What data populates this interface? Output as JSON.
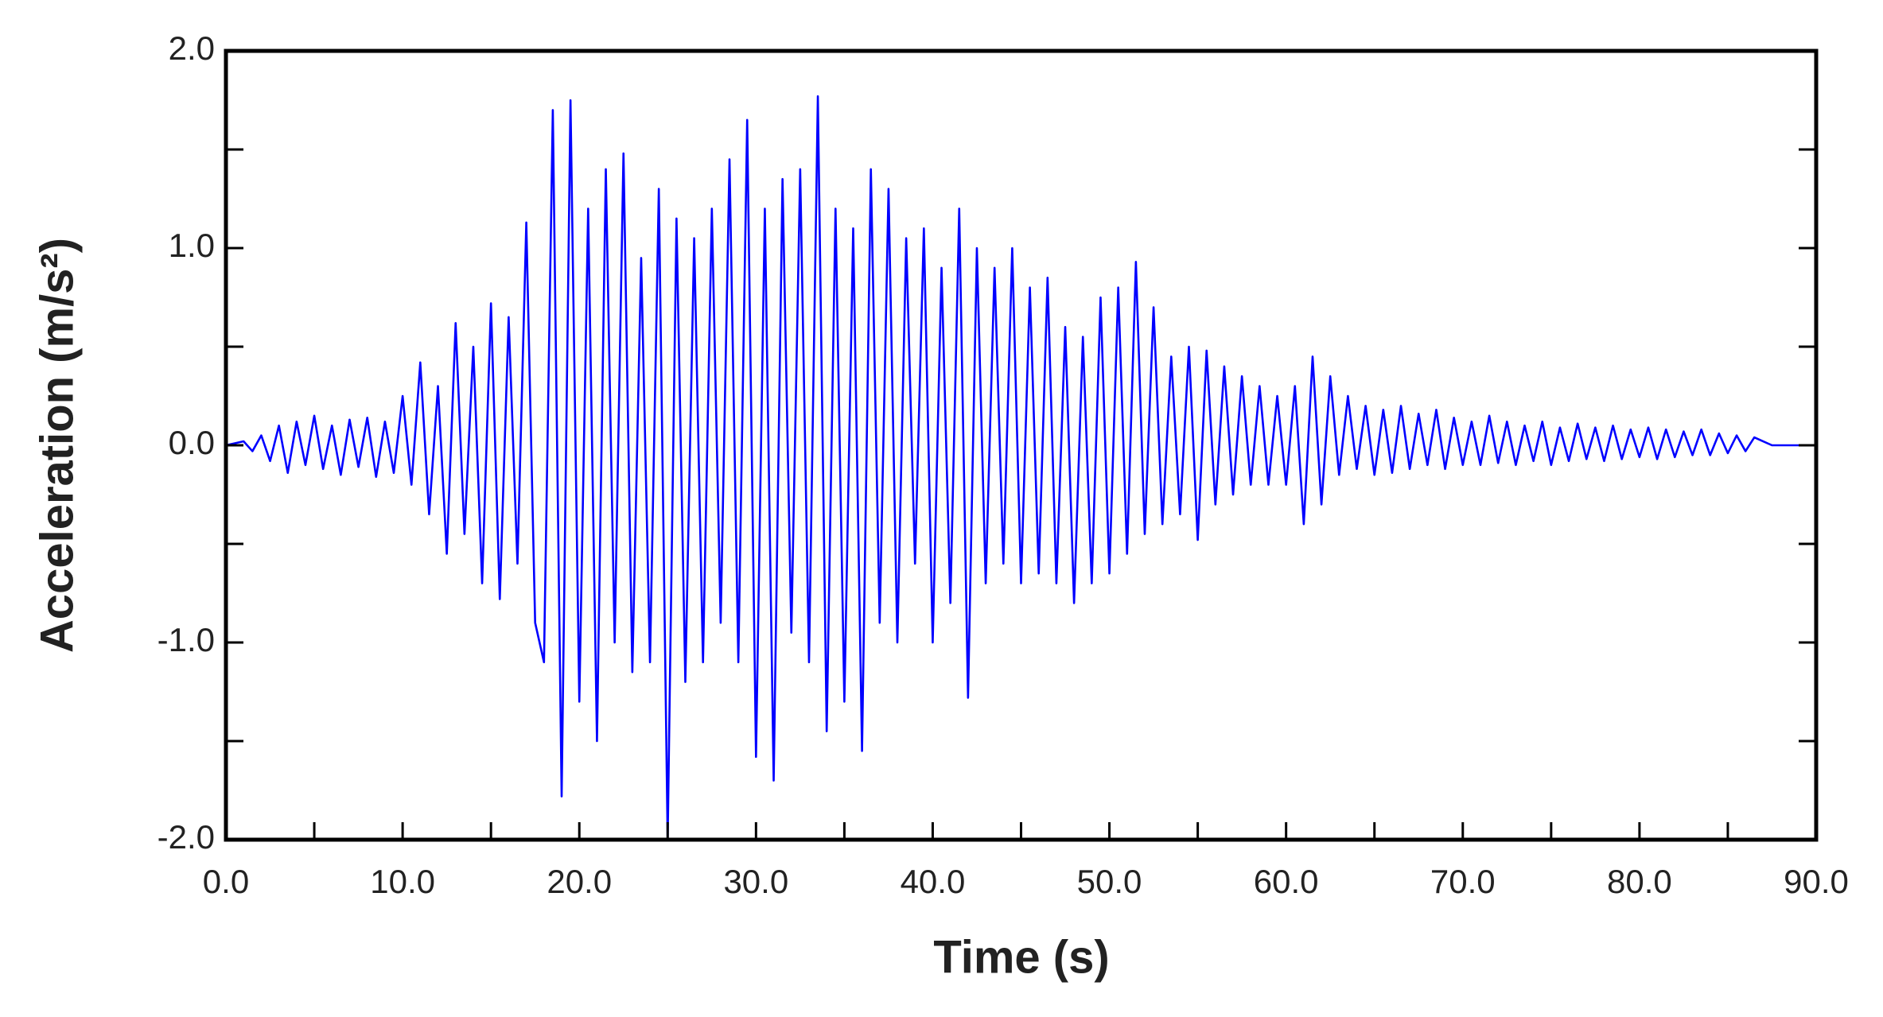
{
  "chart_data": {
    "type": "line",
    "xlabel": "Time (s)",
    "ylabel": "Acceleration (m/s²)",
    "xlim": [
      0,
      90
    ],
    "ylim": [
      -2,
      2
    ],
    "xticks": [
      {
        "value": 0,
        "label": "0.0"
      },
      {
        "value": 10,
        "label": "10.0"
      },
      {
        "value": 20,
        "label": "20.0"
      },
      {
        "value": 30,
        "label": "30.0"
      },
      {
        "value": 40,
        "label": "40.0"
      },
      {
        "value": 50,
        "label": "50.0"
      },
      {
        "value": 60,
        "label": "60.0"
      },
      {
        "value": 70,
        "label": "70.0"
      },
      {
        "value": 80,
        "label": "80.0"
      },
      {
        "value": 90,
        "label": "90.0"
      }
    ],
    "yticks": [
      {
        "value": -2,
        "label": "-2.0"
      },
      {
        "value": -1,
        "label": "-1.0"
      },
      {
        "value": 0,
        "label": "0.0"
      },
      {
        "value": 1,
        "label": "1.0"
      },
      {
        "value": 2,
        "label": "2.0"
      }
    ],
    "xminorticks": [
      5,
      15,
      25,
      35,
      45,
      55,
      65,
      75,
      85
    ],
    "yminorticks": [
      -1.5,
      -0.5,
      0.5,
      1.5
    ],
    "grid": false,
    "x": [
      0,
      1,
      1.5,
      2,
      2.5,
      3,
      3.5,
      4,
      4.5,
      5,
      5.5,
      6,
      6.5,
      7,
      7.5,
      8,
      8.5,
      9,
      9.5,
      10,
      10.5,
      11,
      11.5,
      12,
      12.5,
      13,
      13.5,
      14,
      14.5,
      15,
      15.5,
      16,
      16.5,
      17,
      17.5,
      18,
      18.5,
      19,
      19.5,
      20,
      20.5,
      21,
      21.5,
      22,
      22.5,
      23,
      23.5,
      24,
      24.5,
      25,
      25.5,
      26,
      26.5,
      27,
      27.5,
      28,
      28.5,
      29,
      29.5,
      30,
      30.5,
      31,
      31.5,
      32,
      32.5,
      33,
      33.5,
      34,
      34.5,
      35,
      35.5,
      36,
      36.5,
      37,
      37.5,
      38,
      38.5,
      39,
      39.5,
      40,
      40.5,
      41,
      41.5,
      42,
      42.5,
      43,
      43.5,
      44,
      44.5,
      45,
      45.5,
      46,
      46.5,
      47,
      47.5,
      48,
      48.5,
      49,
      49.5,
      50,
      50.5,
      51,
      51.5,
      52,
      52.5,
      53,
      53.5,
      54,
      54.5,
      55,
      55.5,
      56,
      56.5,
      57,
      57.5,
      58,
      58.5,
      59,
      59.5,
      60,
      60.5,
      61,
      61.5,
      62,
      62.5,
      63,
      63.5,
      64,
      64.5,
      65,
      65.5,
      66,
      66.5,
      67,
      67.5,
      68,
      68.5,
      69,
      69.5,
      70,
      70.5,
      71,
      71.5,
      72,
      72.5,
      73,
      73.5,
      74,
      74.5,
      75,
      75.5,
      76,
      76.5,
      77,
      77.5,
      78,
      78.5,
      79,
      79.5,
      80,
      80.5,
      81,
      81.5,
      82,
      82.5,
      83,
      83.5,
      84,
      84.5,
      85,
      85.5,
      86,
      86.5,
      87,
      87.5,
      90
    ],
    "series": [
      {
        "color": "#0000ff",
        "values": [
          0,
          0.02,
          -0.03,
          0.05,
          -0.08,
          0.1,
          -0.14,
          0.12,
          -0.1,
          0.15,
          -0.12,
          0.1,
          -0.15,
          0.13,
          -0.11,
          0.14,
          -0.16,
          0.12,
          -0.14,
          0.25,
          -0.2,
          0.42,
          -0.35,
          0.3,
          -0.55,
          0.62,
          -0.45,
          0.5,
          -0.7,
          0.72,
          -0.78,
          0.65,
          -0.6,
          1.13,
          -0.9,
          -1.1,
          1.7,
          -1.78,
          1.75,
          -1.3,
          1.2,
          -1.5,
          1.4,
          -1.0,
          1.48,
          -1.15,
          0.95,
          -1.1,
          1.3,
          -2.0,
          1.15,
          -1.2,
          1.05,
          -1.1,
          1.2,
          -0.9,
          1.45,
          -1.1,
          1.65,
          -1.58,
          1.2,
          -1.7,
          1.35,
          -0.95,
          1.4,
          -1.1,
          1.77,
          -1.45,
          1.2,
          -1.3,
          1.1,
          -1.55,
          1.4,
          -0.9,
          1.3,
          -1.0,
          1.05,
          -0.6,
          1.1,
          -1.0,
          0.9,
          -0.8,
          1.2,
          -1.28,
          1.0,
          -0.7,
          0.9,
          -0.6,
          1.0,
          -0.7,
          0.8,
          -0.65,
          0.85,
          -0.7,
          0.6,
          -0.8,
          0.55,
          -0.7,
          0.75,
          -0.65,
          0.8,
          -0.55,
          0.93,
          -0.45,
          0.7,
          -0.4,
          0.45,
          -0.35,
          0.5,
          -0.48,
          0.48,
          -0.3,
          0.4,
          -0.25,
          0.35,
          -0.2,
          0.3,
          -0.2,
          0.25,
          -0.2,
          0.3,
          -0.4,
          0.45,
          -0.3,
          0.35,
          -0.15,
          0.25,
          -0.12,
          0.2,
          -0.15,
          0.18,
          -0.14,
          0.2,
          -0.12,
          0.16,
          -0.1,
          0.18,
          -0.12,
          0.14,
          -0.1,
          0.12,
          -0.1,
          0.15,
          -0.09,
          0.12,
          -0.1,
          0.1,
          -0.08,
          0.12,
          -0.1,
          0.09,
          -0.08,
          0.11,
          -0.07,
          0.09,
          -0.08,
          0.1,
          -0.07,
          0.08,
          -0.06,
          0.09,
          -0.07,
          0.08,
          -0.06,
          0.07,
          -0.05,
          0.08,
          -0.05,
          0.06,
          -0.04,
          0.05,
          -0.03,
          0.04,
          0.02,
          0,
          0
        ]
      }
    ]
  }
}
